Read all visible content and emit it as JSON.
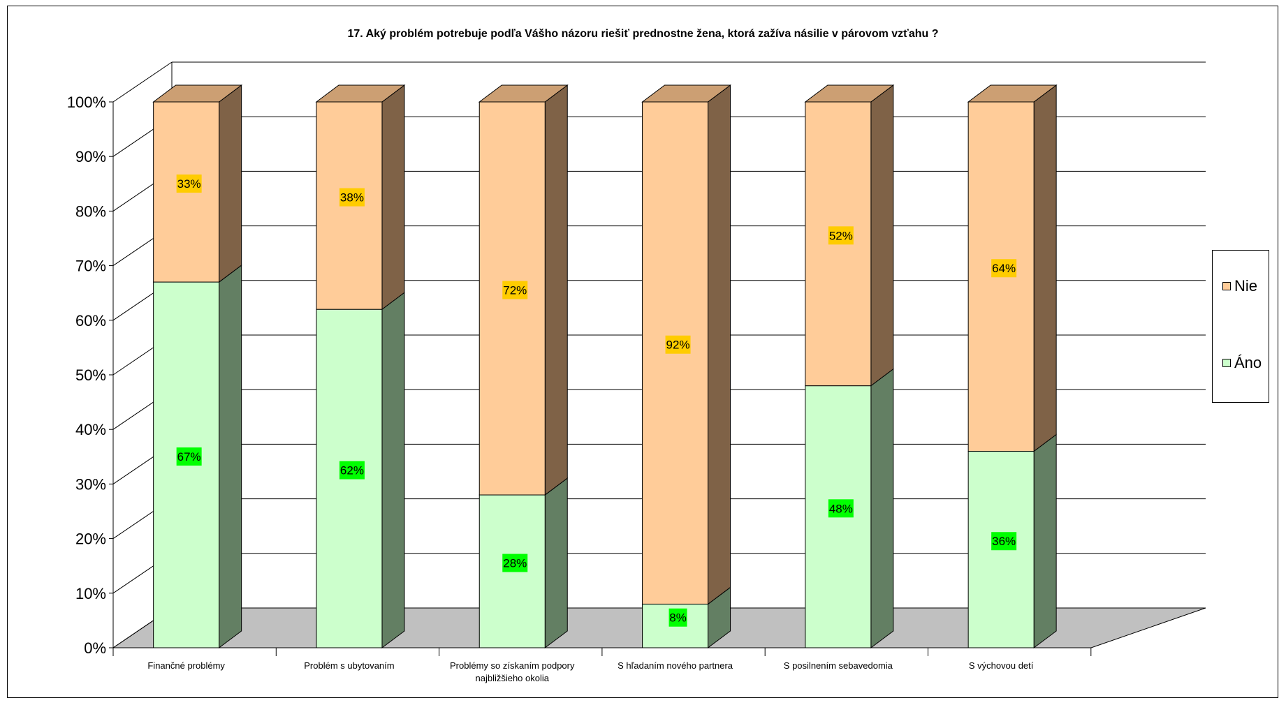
{
  "chart_data": {
    "type": "bar",
    "stacked": true,
    "percent_stacked": true,
    "three_d": true,
    "title": "17. Aký problém potrebuje podľa Vášho názoru riešiť prednostne žena, ktorá zažíva násilie v párovom vzťahu ?",
    "categories": [
      [
        "Finančné problémy"
      ],
      [
        "Problém s ubytovaním"
      ],
      [
        "Problémy so získaním podpory",
        "najbližšieho okolia"
      ],
      [
        "S hľadaním nového partnera"
      ],
      [
        "S posilnením sebavedomia"
      ],
      [
        "S výchovou detí"
      ]
    ],
    "series": [
      {
        "name": "Áno",
        "values": [
          67,
          62,
          28,
          8,
          48,
          36
        ],
        "labels": [
          "67%",
          "62%",
          "28%",
          "8%",
          "48%",
          "36%"
        ],
        "color": "#CCFFCC",
        "side_color": "#637F63",
        "top_color": "#A3CCA3",
        "label_bg": "#00FF00"
      },
      {
        "name": "Nie",
        "values": [
          33,
          38,
          72,
          92,
          52,
          64
        ],
        "labels": [
          "33%",
          "38%",
          "72%",
          "92%",
          "52%",
          "64%"
        ],
        "color": "#FFCC99",
        "side_color": "#7F6247",
        "top_color": "#CC9F73",
        "label_bg": "#FFCC00"
      }
    ],
    "y_ticks": [
      "0%",
      "10%",
      "20%",
      "30%",
      "40%",
      "50%",
      "60%",
      "70%",
      "80%",
      "90%",
      "100%"
    ],
    "ylim": [
      0,
      100
    ],
    "grid": true,
    "legend_position": "right",
    "floor_color": "#C0C0C0"
  },
  "legend": {
    "items": [
      {
        "label": "Nie",
        "color": "#FFCC99"
      },
      {
        "label": "Áno",
        "color": "#CCFFCC"
      }
    ]
  }
}
